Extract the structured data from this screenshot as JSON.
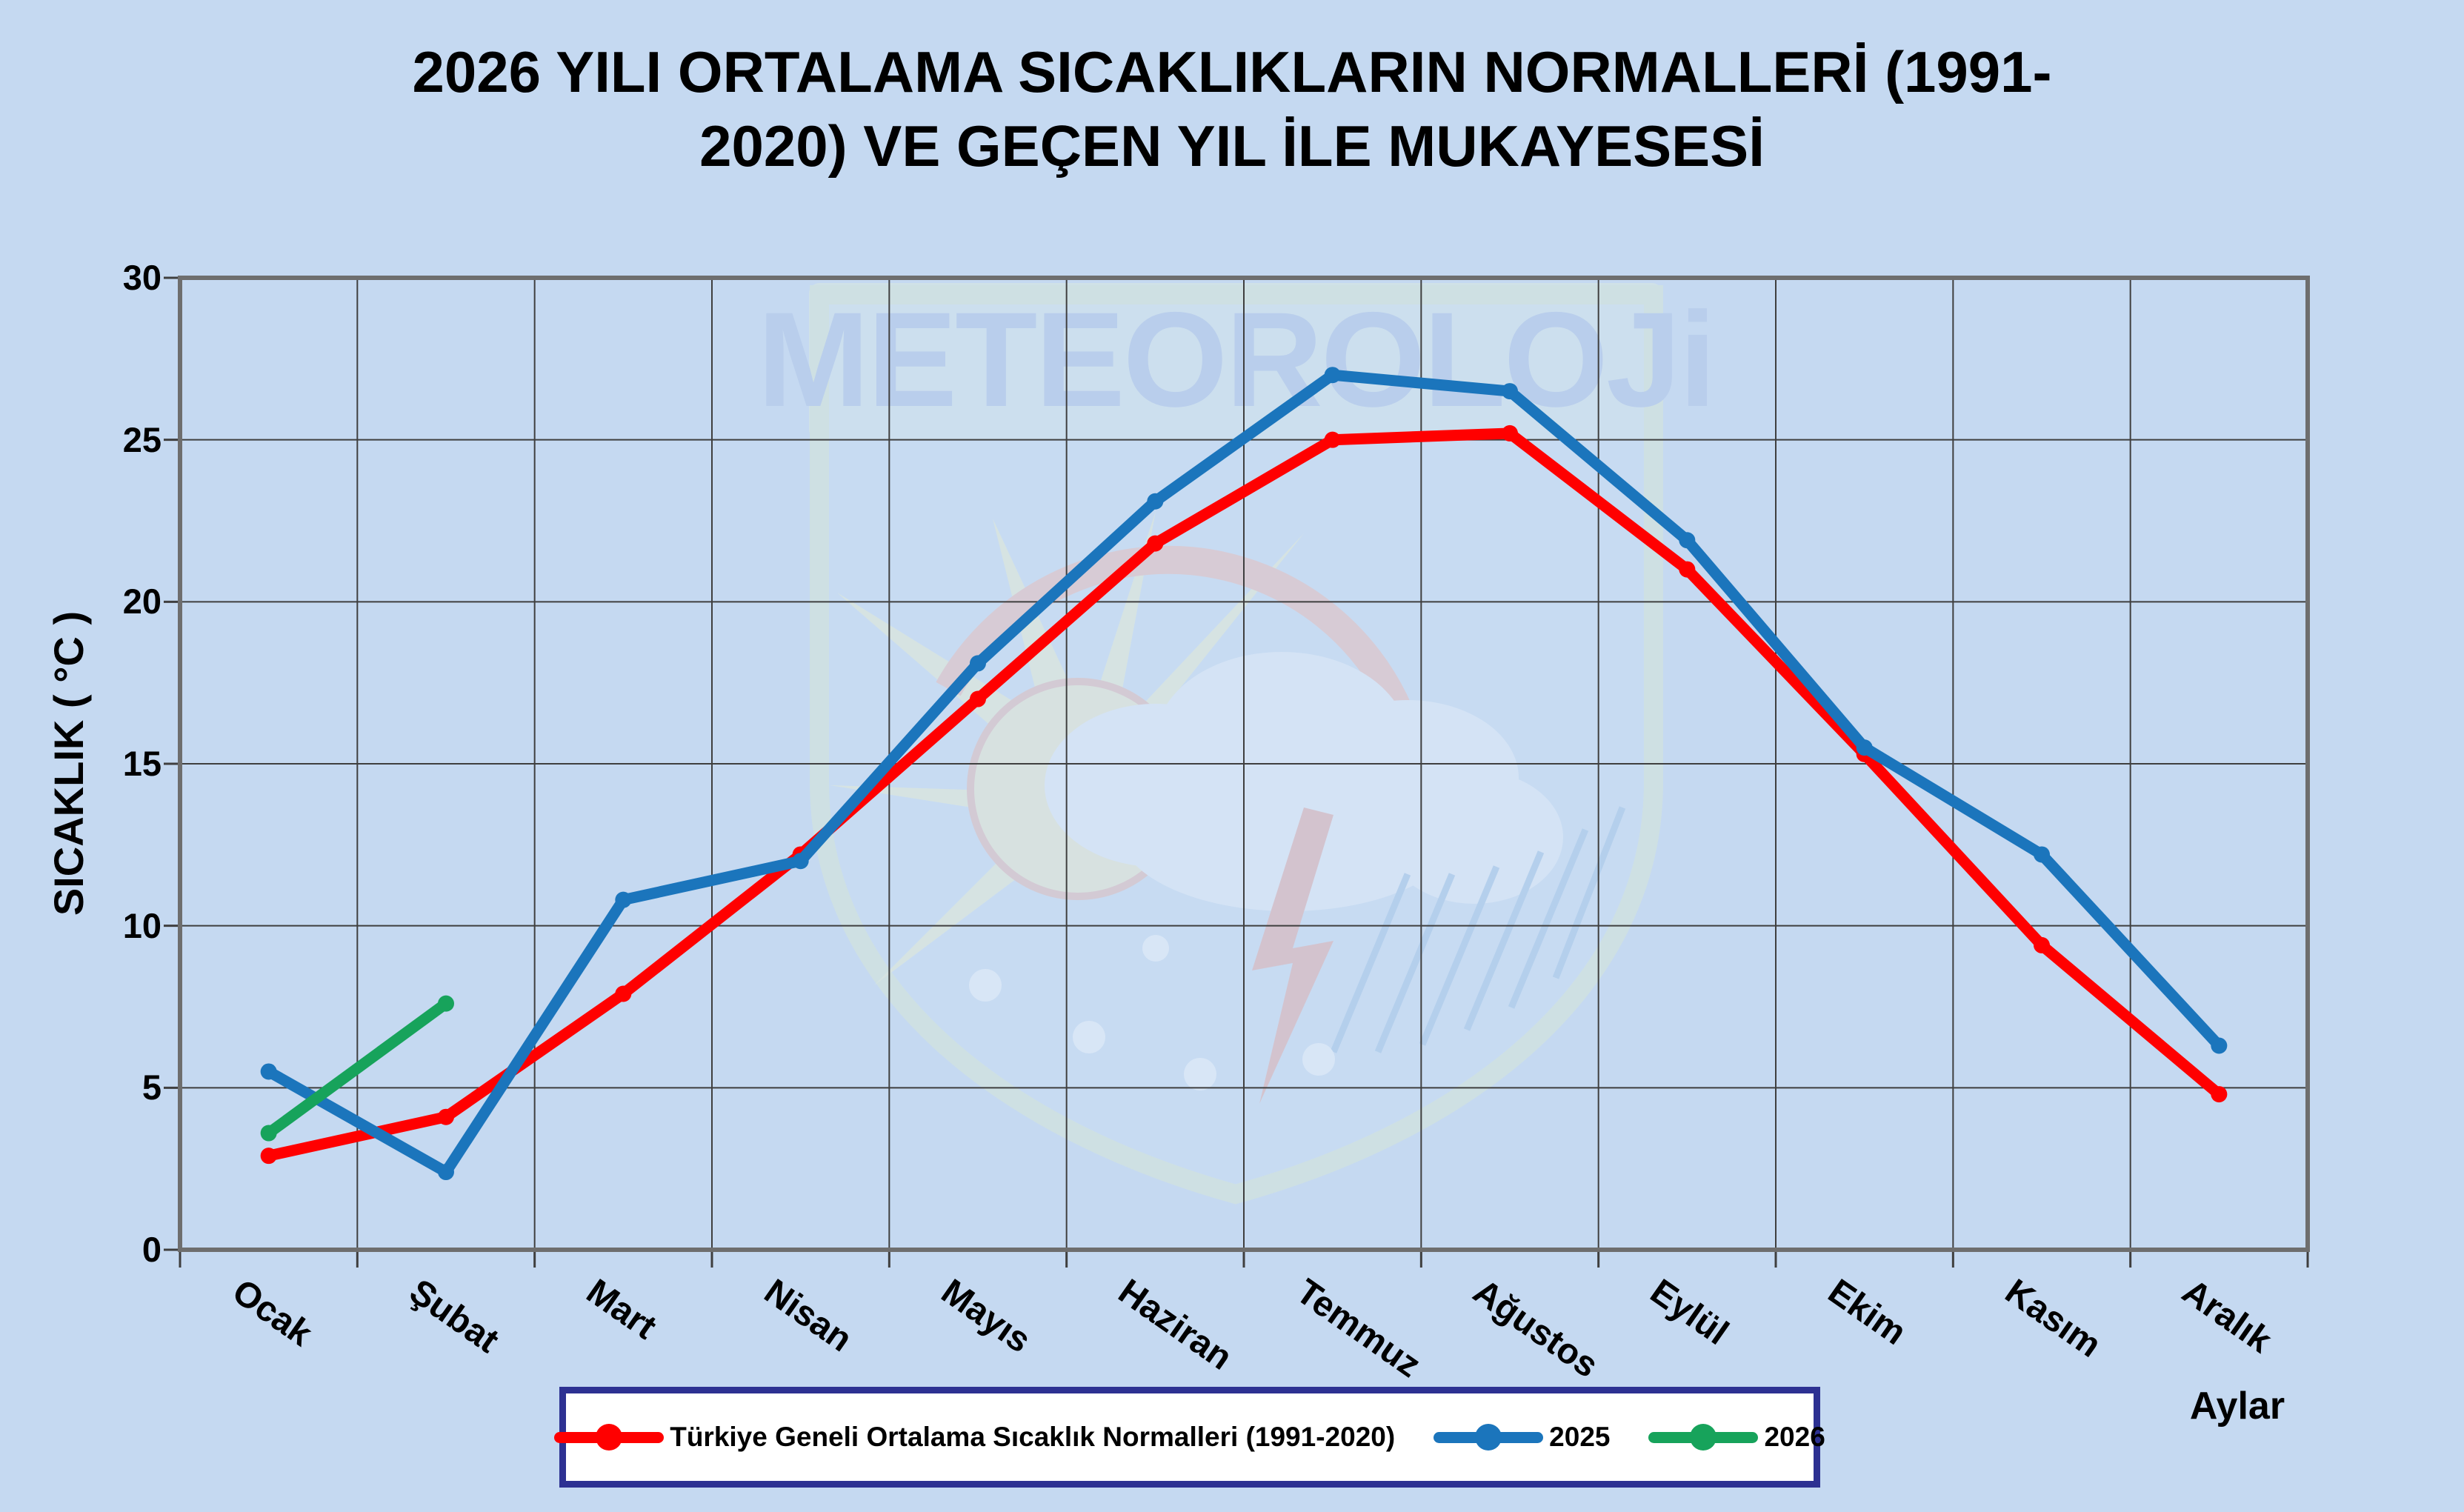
{
  "title": {
    "line1": "2026 YILI ORTALAMA SICAKLIKLARIN NORMALLERİ (1991-",
    "line2": "2020) VE GEÇEN YIL İLE MUKAYESESİ"
  },
  "watermark": {
    "text": "METEOROLOJi"
  },
  "axes": {
    "y_title": "SICAKLIK ( °C )",
    "x_title": "Aylar"
  },
  "chart_data": {
    "type": "line",
    "title": "2026 YILI ORTALAMA SICAKLIKLARIN NORMALLERİ (1991-2020) VE GEÇEN YIL İLE MUKAYESESİ",
    "categories": [
      "Ocak",
      "Şubat",
      "Mart",
      "Nisan",
      "Mayıs",
      "Haziran",
      "Temmuz",
      "Ağustos",
      "Eylül",
      "Ekim",
      "Kasım",
      "Aralık"
    ],
    "series": [
      {
        "name": "Türkiye Geneli Ortalama Sıcaklık Normalleri (1991-2020)",
        "color": "#ff0000",
        "values": [
          2.9,
          4.1,
          7.9,
          12.2,
          17.0,
          21.8,
          25.0,
          25.2,
          21.0,
          15.3,
          9.4,
          4.8
        ]
      },
      {
        "name": "2025",
        "color": "#1b75bc",
        "values": [
          5.5,
          2.4,
          10.8,
          12.0,
          18.1,
          23.1,
          27.0,
          26.5,
          21.9,
          15.5,
          12.2,
          6.3
        ]
      },
      {
        "name": "2026",
        "color": "#17a35b",
        "values": [
          3.6,
          7.6
        ]
      }
    ],
    "xlabel": "Aylar",
    "ylabel": "SICAKLIK ( °C )",
    "ylim": [
      0,
      30
    ],
    "yticks": [
      0,
      5,
      10,
      15,
      20,
      25,
      30
    ],
    "grid": true,
    "legend_position": "bottom",
    "colors": {
      "background": "#c5d9f1",
      "gridline": "#3f3f3f",
      "plot_border": "#6e6e6e",
      "legend_border": "#2d3192",
      "text": "#000000"
    }
  }
}
